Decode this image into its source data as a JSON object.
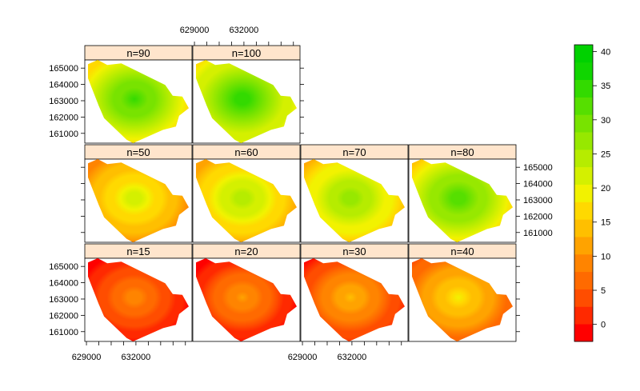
{
  "chart_data": {
    "type": "heatmap",
    "layout": "trellis",
    "panels": [
      {
        "label": "n=15",
        "peak": 10
      },
      {
        "label": "n=20",
        "peak": 11
      },
      {
        "label": "n=30",
        "peak": 14
      },
      {
        "label": "n=40",
        "peak": 18
      },
      {
        "label": "n=50",
        "peak": 22
      },
      {
        "label": "n=60",
        "peak": 25
      },
      {
        "label": "n=70",
        "peak": 28
      },
      {
        "label": "n=80",
        "peak": 33
      },
      {
        "label": "n=90",
        "peak": 34
      },
      {
        "label": "n=100",
        "peak": 35
      }
    ],
    "x_ticks": [
      629000,
      632000
    ],
    "x_tick_labels": [
      "629000",
      "632000"
    ],
    "y_ticks": [
      161000,
      162000,
      163000,
      164000,
      165000
    ],
    "y_tick_labels": [
      "161000",
      "162000",
      "163000",
      "164000",
      "165000"
    ],
    "xlim": [
      628900,
      635400
    ],
    "ylim": [
      160400,
      165500
    ],
    "colorbar": {
      "ticks": [
        0,
        5,
        10,
        15,
        20,
        25,
        30,
        35,
        40
      ],
      "tick_labels": [
        "0",
        "5",
        "10",
        "15",
        "20",
        "25",
        "30",
        "35",
        "40"
      ],
      "range": [
        -2.5,
        41
      ],
      "colors": [
        "#ff0000",
        "#ff2900",
        "#ff4d00",
        "#ff6a00",
        "#ff8400",
        "#ffa300",
        "#ffbf00",
        "#ffd900",
        "#f2f200",
        "#d4f000",
        "#b6ec00",
        "#97e800",
        "#78e300",
        "#56df00",
        "#33da00",
        "#10d500",
        "#00d100"
      ]
    }
  }
}
